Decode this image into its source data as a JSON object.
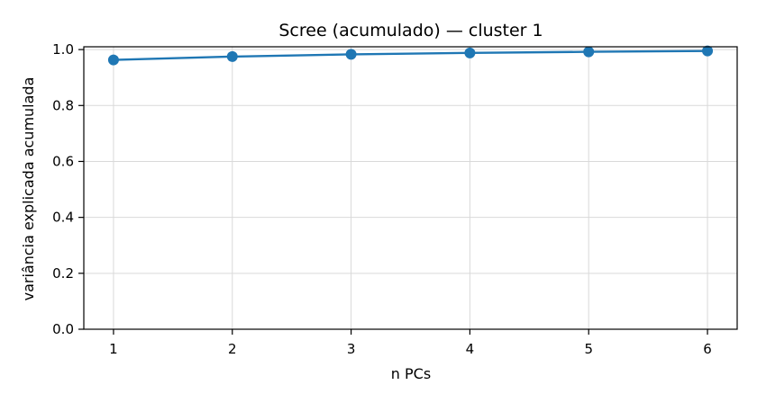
{
  "chart_data": {
    "type": "line",
    "title": "Scree (acumulado) — cluster 1",
    "xlabel": "n PCs",
    "ylabel": "variância explicada acumulada",
    "x": [
      1,
      2,
      3,
      4,
      5,
      6
    ],
    "series": [
      {
        "values": [
          0.963,
          0.975,
          0.983,
          0.988,
          0.992,
          0.995
        ],
        "color": "#1f77b4"
      }
    ],
    "xlim": [
      0.75,
      6.25
    ],
    "ylim": [
      0,
      1.01
    ],
    "xticks": [
      "1",
      "2",
      "3",
      "4",
      "5",
      "6"
    ],
    "yticks": [
      "0.0",
      "0.2",
      "0.4",
      "0.6",
      "0.8",
      "1.0"
    ],
    "grid": true,
    "legend": "none"
  }
}
